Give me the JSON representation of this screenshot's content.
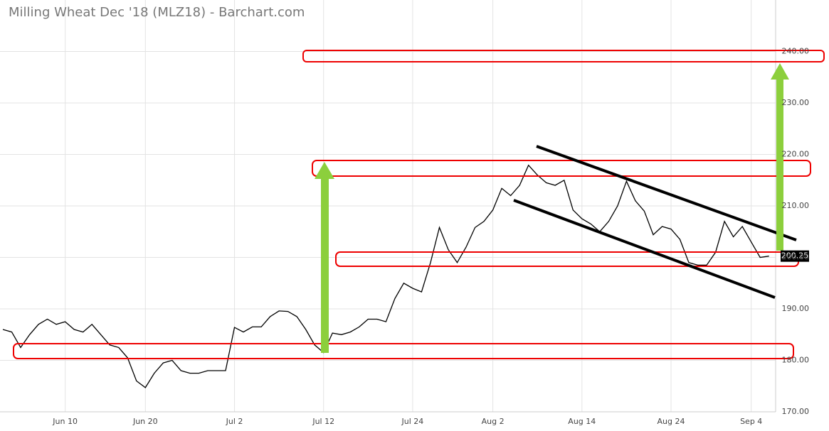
{
  "chart_data": {
    "type": "line",
    "title": "Milling Wheat Dec '18 (MLZ18) - Barchart.com",
    "color": "#000000",
    "categories": [
      null,
      null,
      null,
      null,
      null,
      null,
      null,
      "Jun 10",
      null,
      null,
      null,
      null,
      null,
      null,
      null,
      null,
      "Jun 20",
      null,
      null,
      null,
      null,
      null,
      null,
      null,
      null,
      null,
      "Jul 2",
      null,
      null,
      null,
      null,
      null,
      null,
      null,
      null,
      null,
      "Jul 12",
      null,
      null,
      null,
      null,
      null,
      null,
      null,
      null,
      null,
      "Jul 24",
      null,
      null,
      null,
      null,
      null,
      null,
      null,
      null,
      "Aug 2",
      null,
      null,
      null,
      null,
      null,
      null,
      null,
      null,
      null,
      "Aug 14",
      null,
      null,
      null,
      null,
      null,
      null,
      null,
      null,
      null,
      "Aug 24",
      null,
      null,
      null,
      null,
      null,
      null,
      null,
      null,
      "Sep 4",
      null,
      null
    ],
    "values": [
      186,
      185.5,
      182.5,
      185,
      187,
      188,
      187,
      187.5,
      186,
      185.5,
      187,
      185,
      183,
      182.5,
      180.5,
      176,
      174.7,
      177.5,
      179.5,
      180,
      178,
      177.5,
      177.5,
      178,
      178,
      178,
      186.4,
      185.5,
      186.5,
      186.5,
      188.5,
      189.6,
      189.5,
      188.5,
      186,
      183,
      181.5,
      185.3,
      185,
      185.5,
      186.5,
      188,
      188,
      187.5,
      192,
      195,
      194,
      193.3,
      199,
      205.8,
      201.5,
      199,
      202,
      205.8,
      207,
      209.2,
      213.4,
      212,
      214,
      217.9,
      216,
      214.5,
      214,
      215,
      209.2,
      207.5,
      206.5,
      205,
      207,
      210,
      214.8,
      211,
      209,
      204.4,
      206,
      205.5,
      203.5,
      199,
      198.5,
      198.5,
      201,
      207,
      204,
      206,
      203,
      200,
      200.25
    ],
    "ylim": [
      170,
      250
    ],
    "yticks": [
      {
        "value": 170,
        "label": "170.00"
      },
      {
        "value": 180,
        "label": "180.00"
      },
      {
        "value": 190,
        "label": "190.00"
      },
      {
        "value": 200,
        "label": "200.00"
      },
      {
        "value": 210,
        "label": "210.00"
      },
      {
        "value": 220,
        "label": "220.00"
      },
      {
        "value": 230,
        "label": "230.00"
      },
      {
        "value": 240,
        "label": "240.00"
      }
    ],
    "grid": true
  }
}
